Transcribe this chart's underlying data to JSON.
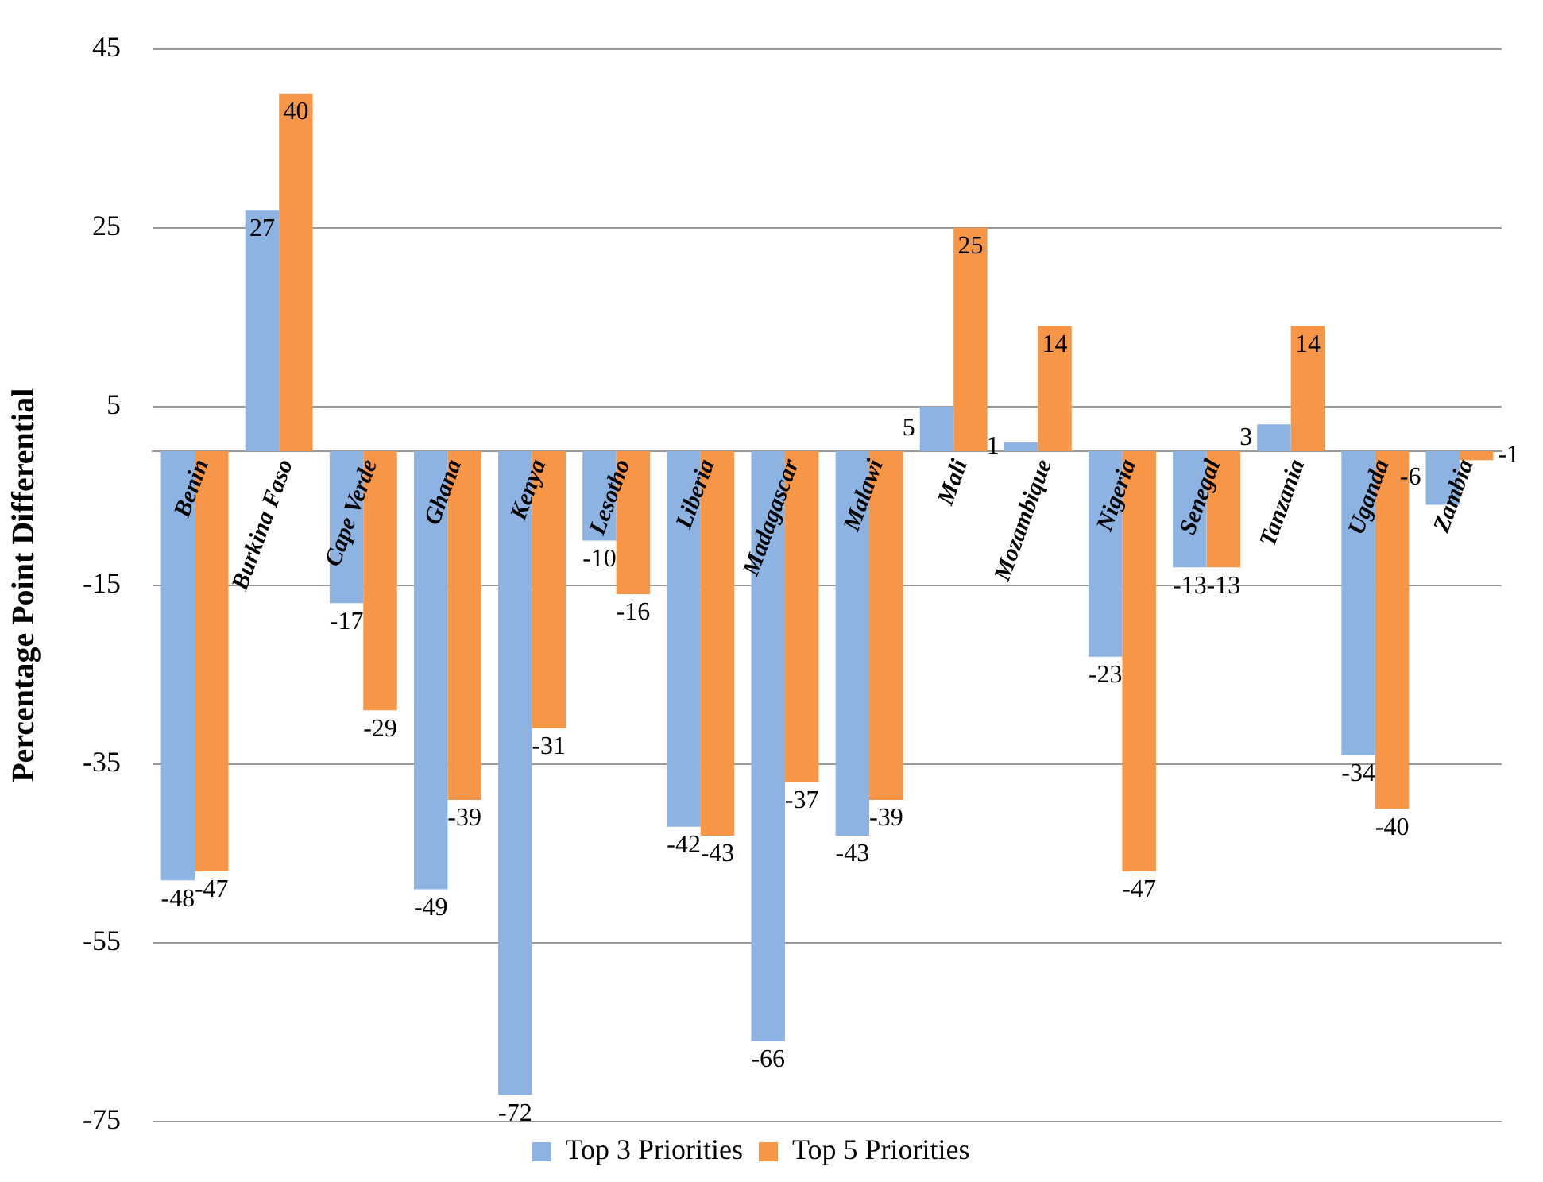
{
  "chart_data": {
    "type": "bar",
    "ylabel": "Percentage Point Differential",
    "categories": [
      "Benin",
      "Burkina Faso",
      "Cape Verde",
      "Ghana",
      "Kenya",
      "Lesotho",
      "Liberia",
      "Madagascar",
      "Malawi",
      "Mali",
      "Mozambique",
      "Nigeria",
      "Senegal",
      "Tanzania",
      "Uganda",
      "Zambia"
    ],
    "series": [
      {
        "name": "Top 3 Priorities",
        "color": "#8db3e2",
        "values": [
          -48,
          27,
          -17,
          -49,
          -72,
          -10,
          -42,
          -66,
          -43,
          5,
          1,
          -23,
          -13,
          3,
          -34,
          -6
        ]
      },
      {
        "name": "Top 5 Priorities",
        "color": "#f79646",
        "values": [
          -47,
          40,
          -29,
          -39,
          -31,
          -16,
          -43,
          -37,
          -39,
          25,
          14,
          -47,
          -13,
          14,
          -40,
          -1
        ]
      }
    ],
    "ylim": [
      -75,
      45
    ],
    "yticks": [
      -75,
      -55,
      -35,
      -15,
      5,
      25,
      45
    ],
    "grid": "y",
    "legend": "bottom",
    "data_labels": true
  }
}
